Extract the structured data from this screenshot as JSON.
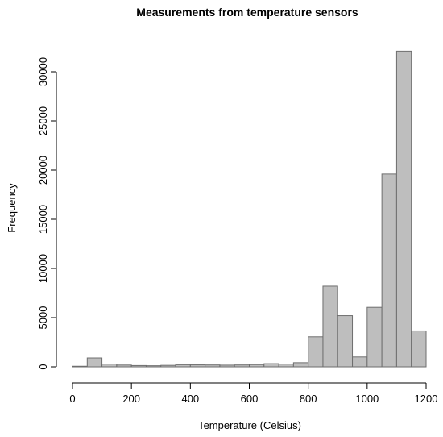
{
  "chart_data": {
    "type": "bar",
    "title": "Measurements from temperature sensors",
    "xlabel": "Temperature (Celsius)",
    "ylabel": "Frequency",
    "bin_width": 50,
    "bin_starts": [
      0,
      50,
      100,
      150,
      200,
      250,
      300,
      350,
      400,
      450,
      500,
      550,
      600,
      650,
      700,
      750,
      800,
      850,
      900,
      950,
      1000,
      1050,
      1100,
      1150
    ],
    "values": [
      60,
      900,
      280,
      180,
      130,
      110,
      150,
      220,
      200,
      190,
      170,
      190,
      230,
      320,
      280,
      420,
      3050,
      8200,
      5200,
      1000,
      6050,
      19600,
      32100,
      3650
    ],
    "xlim": [
      0,
      1200
    ],
    "ylim": [
      0,
      30000
    ],
    "x_ticks": [
      0,
      200,
      400,
      600,
      800,
      1000,
      1200
    ],
    "y_ticks": [
      0,
      5000,
      10000,
      15000,
      20000,
      25000,
      30000
    ],
    "bar_color": "#bebebe",
    "bar_border_color": "#6e6e6e",
    "grid": false,
    "legend": "none"
  }
}
